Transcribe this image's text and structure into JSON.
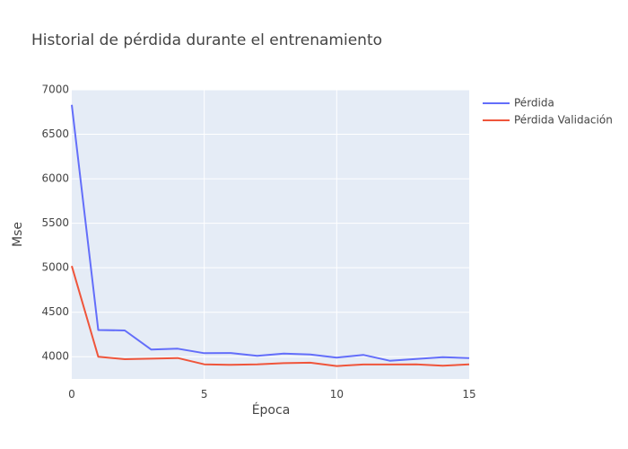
{
  "chart_data": {
    "type": "line",
    "title": "Historial de pérdida durante el entrenamiento",
    "xlabel": "Época",
    "ylabel": "Mse",
    "xlim": [
      0,
      15
    ],
    "ylim": [
      3750,
      7000
    ],
    "xticks": [
      0,
      5,
      10,
      15
    ],
    "yticks": [
      4000,
      4500,
      5000,
      5500,
      6000,
      6500,
      7000
    ],
    "grid": true,
    "legend_position": "top-right",
    "x": [
      0,
      1,
      2,
      3,
      4,
      5,
      6,
      7,
      8,
      9,
      10,
      11,
      12,
      13,
      14,
      15
    ],
    "series": [
      {
        "name": "Pérdida",
        "color": "#636efa",
        "values": [
          6830,
          4300,
          4295,
          4080,
          4090,
          4040,
          4042,
          4010,
          4035,
          4025,
          3990,
          4020,
          3955,
          3975,
          3995,
          3985
        ]
      },
      {
        "name": "Pérdida Validación",
        "color": "#ef553b",
        "values": [
          5020,
          4000,
          3972,
          3978,
          3985,
          3915,
          3908,
          3915,
          3928,
          3933,
          3895,
          3913,
          3913,
          3915,
          3898,
          3915
        ]
      }
    ]
  }
}
